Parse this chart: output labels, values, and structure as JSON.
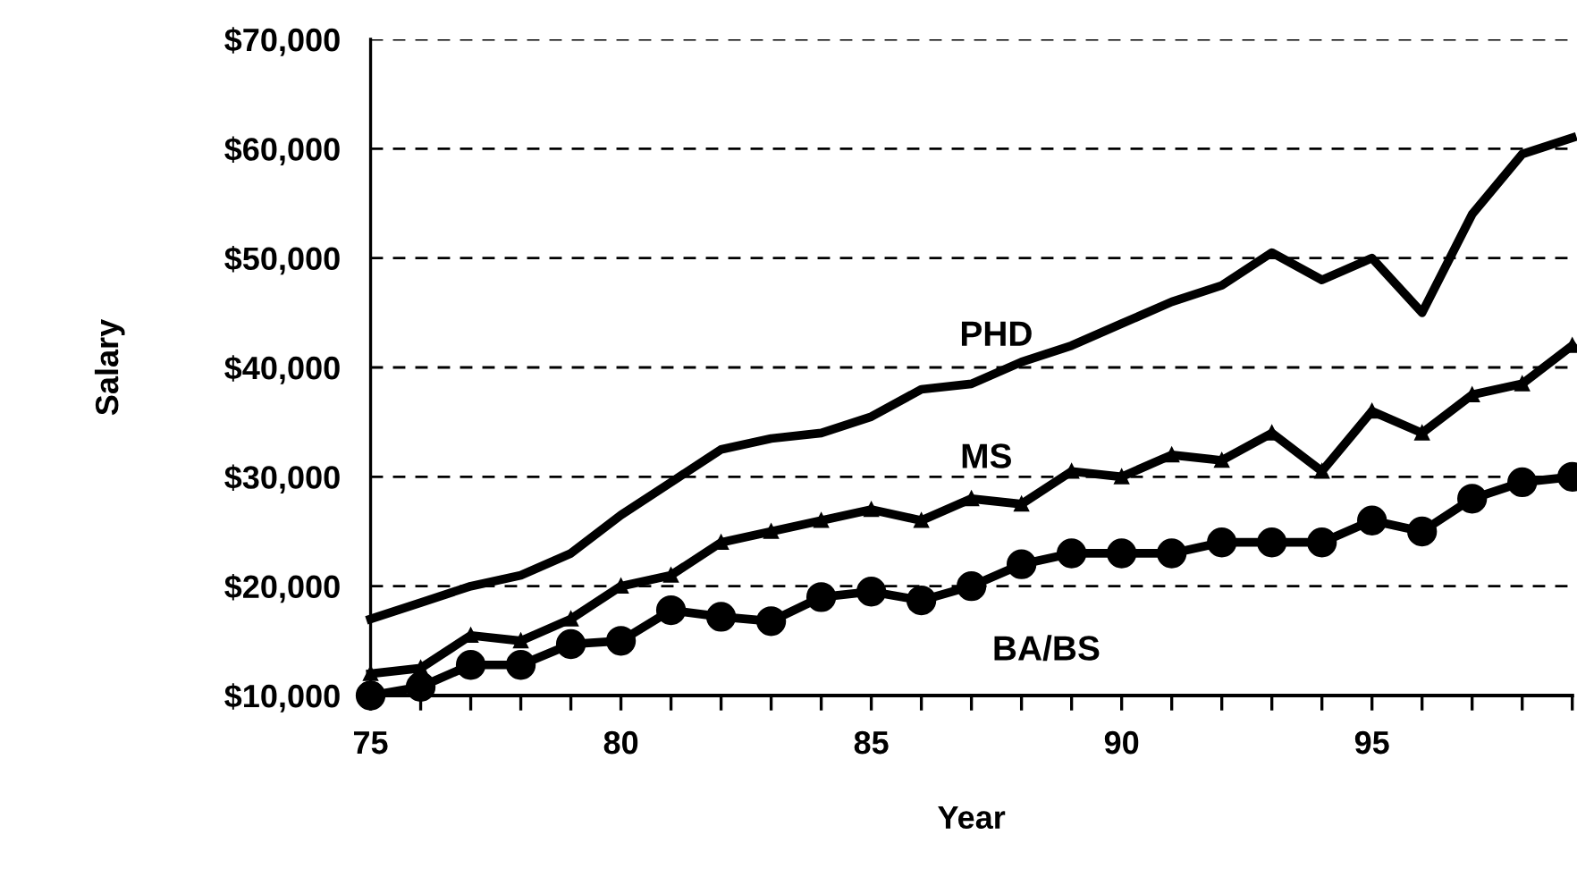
{
  "chart_data": {
    "type": "line",
    "xlabel": "Year",
    "ylabel": "Salary",
    "x": [
      75,
      76,
      77,
      78,
      79,
      80,
      81,
      82,
      83,
      84,
      85,
      86,
      87,
      88,
      89,
      90,
      91,
      92,
      93,
      94,
      95,
      96,
      97,
      98,
      99
    ],
    "series": [
      {
        "name": "PHD",
        "color": "#000000",
        "marker": "none",
        "values": [
          17000,
          18500,
          20000,
          21000,
          23000,
          26500,
          29500,
          32500,
          33500,
          34000,
          35500,
          38000,
          38500,
          40500,
          42000,
          44000,
          46000,
          47500,
          50500,
          48000,
          50000,
          45000,
          54000,
          59500,
          61000
        ]
      },
      {
        "name": "MS",
        "color": "#000000",
        "marker": "triangle",
        "values": [
          12000,
          12500,
          15500,
          15000,
          17000,
          20000,
          21000,
          24000,
          25000,
          26000,
          27000,
          26000,
          28000,
          27500,
          30500,
          30000,
          32000,
          31500,
          34000,
          30500,
          36000,
          34000,
          37500,
          38500,
          42000
        ]
      },
      {
        "name": "BA/BS",
        "color": "#000000",
        "marker": "circle",
        "values": [
          10000,
          10800,
          12800,
          12800,
          14700,
          15000,
          17800,
          17200,
          16800,
          19000,
          19500,
          18700,
          20000,
          22000,
          23000,
          23000,
          23000,
          24000,
          24000,
          24000,
          26000,
          25000,
          28000,
          29500,
          30000
        ]
      }
    ],
    "xlim": [
      75,
      99
    ],
    "ylim": [
      10000,
      70000
    ],
    "xticks": [
      75,
      {
        "value": 76,
        "label": null
      },
      {
        "value": 77,
        "label": null
      },
      {
        "value": 78,
        "label": null
      },
      {
        "value": 79,
        "label": null
      },
      80,
      {
        "value": 81,
        "label": null
      },
      {
        "value": 82,
        "label": null
      },
      {
        "value": 83,
        "label": null
      },
      {
        "value": 84,
        "label": null
      },
      85,
      {
        "value": 86,
        "label": null
      },
      {
        "value": 87,
        "label": null
      },
      {
        "value": 88,
        "label": null
      },
      {
        "value": 89,
        "label": null
      },
      90,
      {
        "value": 91,
        "label": null
      },
      {
        "value": 92,
        "label": null
      },
      {
        "value": 93,
        "label": null
      },
      {
        "value": 94,
        "label": null
      },
      95,
      {
        "value": 96,
        "label": null
      },
      {
        "value": 97,
        "label": null
      },
      {
        "value": 98,
        "label": null
      },
      {
        "value": 99,
        "label": null
      }
    ],
    "yticks": [
      {
        "value": 10000,
        "label": "$10,000"
      },
      {
        "value": 20000,
        "label": "$20,000"
      },
      {
        "value": 30000,
        "label": "$30,000"
      },
      {
        "value": 40000,
        "label": "$40,000"
      },
      {
        "value": 50000,
        "label": "$50,000"
      },
      {
        "value": 60000,
        "label": "$60,000"
      },
      {
        "value": 70000,
        "label": "$70,000"
      }
    ],
    "grid": "y",
    "line_style": "solid",
    "legend": false
  }
}
